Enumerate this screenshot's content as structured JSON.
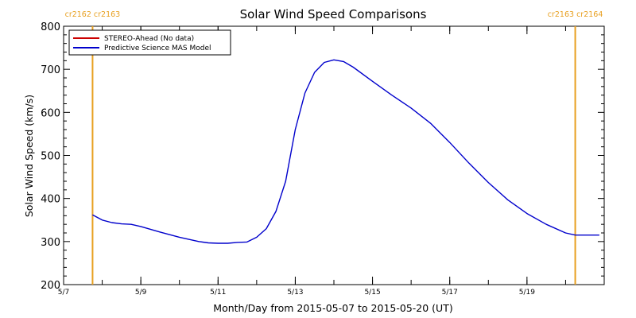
{
  "chart_data": {
    "type": "line",
    "title": "Solar Wind Speed Comparisons",
    "xlabel": "Month/Day from 2015-05-07 to 2015-05-20 (UT)",
    "ylabel": "Solar Wind Speed (km/s)",
    "xlim": [
      "2015-05-07",
      "2015-05-21"
    ],
    "ylim": [
      200,
      800
    ],
    "yticks": [
      200,
      300,
      400,
      500,
      600,
      700,
      800
    ],
    "xticks": [
      {
        "date": "2015-05-07",
        "label": "5/7"
      },
      {
        "date": "2015-05-09",
        "label": "5/9"
      },
      {
        "date": "2015-05-11",
        "label": "5/11"
      },
      {
        "date": "2015-05-13",
        "label": "5/13"
      },
      {
        "date": "2015-05-15",
        "label": "5/15"
      },
      {
        "date": "2015-05-17",
        "label": "5/17"
      },
      {
        "date": "2015-05-19",
        "label": "5/19"
      }
    ],
    "legend_placement": "top-left",
    "legend": [
      {
        "name": "STEREO-Ahead (No data)",
        "color": "#cc0000"
      },
      {
        "name": "Predictive Science MAS Model",
        "color": "#0000cc"
      }
    ],
    "carrington_markers": [
      {
        "date": "2015-05-07 18:00",
        "label": "cr2162 cr2163",
        "color": "#e8a020"
      },
      {
        "date": "2015-05-20 06:00",
        "label": "cr2163 cr2164",
        "color": "#e8a020"
      }
    ],
    "series": [
      {
        "name": "Predictive Science MAS Model",
        "color": "#0000cc",
        "points": [
          [
            "2015-05-07 18:00",
            362
          ],
          [
            "2015-05-08 00:00",
            350
          ],
          [
            "2015-05-08 06:00",
            344
          ],
          [
            "2015-05-08 12:00",
            341
          ],
          [
            "2015-05-08 18:00",
            340
          ],
          [
            "2015-05-09 00:00",
            335
          ],
          [
            "2015-05-09 12:00",
            322
          ],
          [
            "2015-05-10 00:00",
            310
          ],
          [
            "2015-05-10 12:00",
            300
          ],
          [
            "2015-05-10 18:00",
            297
          ],
          [
            "2015-05-11 00:00",
            296
          ],
          [
            "2015-05-11 06:00",
            296
          ],
          [
            "2015-05-11 12:00",
            298
          ],
          [
            "2015-05-11 18:00",
            299
          ],
          [
            "2015-05-12 00:00",
            310
          ],
          [
            "2015-05-12 06:00",
            330
          ],
          [
            "2015-05-12 12:00",
            370
          ],
          [
            "2015-05-12 18:00",
            440
          ],
          [
            "2015-05-13 00:00",
            560
          ],
          [
            "2015-05-13 06:00",
            645
          ],
          [
            "2015-05-13 12:00",
            693
          ],
          [
            "2015-05-13 18:00",
            716
          ],
          [
            "2015-05-14 00:00",
            722
          ],
          [
            "2015-05-14 06:00",
            718
          ],
          [
            "2015-05-14 12:00",
            705
          ],
          [
            "2015-05-15 00:00",
            672
          ],
          [
            "2015-05-15 12:00",
            640
          ],
          [
            "2015-05-16 00:00",
            610
          ],
          [
            "2015-05-16 12:00",
            575
          ],
          [
            "2015-05-17 00:00",
            530
          ],
          [
            "2015-05-17 12:00",
            482
          ],
          [
            "2015-05-18 00:00",
            437
          ],
          [
            "2015-05-18 12:00",
            397
          ],
          [
            "2015-05-19 00:00",
            365
          ],
          [
            "2015-05-19 12:00",
            340
          ],
          [
            "2015-05-20 00:00",
            320
          ],
          [
            "2015-05-20 06:00",
            315
          ],
          [
            "2015-05-20 12:00",
            315
          ],
          [
            "2015-05-20 21:00",
            315
          ]
        ]
      }
    ]
  }
}
